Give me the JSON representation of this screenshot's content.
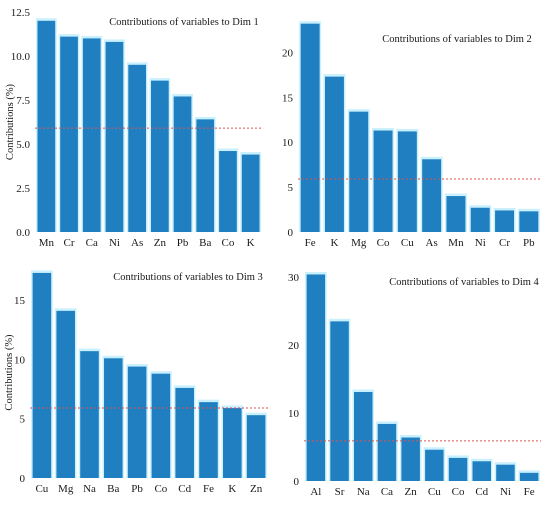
{
  "colors": {
    "bar": "#1f7fc0",
    "bar_glow": "#c8f0ff",
    "reference_line": "#d9534f",
    "text": "#1a1a1a"
  },
  "chart_data": [
    {
      "type": "bar",
      "title": "Contributions of variables to Dim 1",
      "ylabel": "Contributions (%)",
      "xlabel": "",
      "categories": [
        "Mn",
        "Cr",
        "Ca",
        "Ni",
        "As",
        "Zn",
        "Pb",
        "Ba",
        "Co",
        "K"
      ],
      "values": [
        12.0,
        11.1,
        11.0,
        10.8,
        9.5,
        8.6,
        7.7,
        6.4,
        4.6,
        4.4
      ],
      "ylim": [
        0,
        12.5
      ],
      "yticks": [
        0.0,
        2.5,
        5.0,
        7.5,
        10.0,
        12.5
      ],
      "ytick_labels": [
        "0.0",
        "2.5",
        "5.0",
        "7.5",
        "10.0",
        "12.5"
      ],
      "reference_line": 5.9,
      "grid": false
    },
    {
      "type": "bar",
      "title": "Contributions of variables to Dim 2",
      "ylabel": "",
      "xlabel": "",
      "categories": [
        "Fe",
        "K",
        "Mg",
        "Co",
        "Cu",
        "As",
        "Mn",
        "Ni",
        "Cr",
        "Pb"
      ],
      "values": [
        23.2,
        17.3,
        13.4,
        11.3,
        11.2,
        8.1,
        4.0,
        2.7,
        2.4,
        2.3
      ],
      "ylim": [
        0,
        24.5
      ],
      "yticks": [
        0,
        5,
        10,
        15,
        20
      ],
      "ytick_labels": [
        "0",
        "5",
        "10",
        "15",
        "20"
      ],
      "reference_line": 5.9,
      "grid": false
    },
    {
      "type": "bar",
      "title": "Contributions of variables to Dim 3",
      "ylabel": "Contributions (%)",
      "xlabel": "",
      "categories": [
        "Cu",
        "Mg",
        "Na",
        "Ba",
        "Pb",
        "Co",
        "Cd",
        "Fe",
        "K",
        "Zn"
      ],
      "values": [
        17.3,
        14.1,
        10.7,
        10.1,
        9.4,
        8.8,
        7.6,
        6.4,
        5.9,
        5.3
      ],
      "ylim": [
        0,
        17.8
      ],
      "yticks": [
        0,
        5,
        10,
        15
      ],
      "ytick_labels": [
        "0",
        "5",
        "10",
        "15"
      ],
      "reference_line": 5.9,
      "grid": false
    },
    {
      "type": "bar",
      "title": "Contributions of variables to Dim 4",
      "ylabel": "",
      "xlabel": "",
      "categories": [
        "Al",
        "Sr",
        "Na",
        "Ca",
        "Zn",
        "Cu",
        "Co",
        "Cd",
        "Ni",
        "Fe"
      ],
      "values": [
        30.4,
        23.5,
        13.1,
        8.4,
        6.4,
        4.6,
        3.4,
        2.9,
        2.4,
        1.2
      ],
      "ylim": [
        0,
        31.5
      ],
      "yticks": [
        0,
        10,
        20,
        30
      ],
      "ytick_labels": [
        "0",
        "10",
        "20",
        "30"
      ],
      "reference_line": 5.9,
      "grid": false
    }
  ]
}
